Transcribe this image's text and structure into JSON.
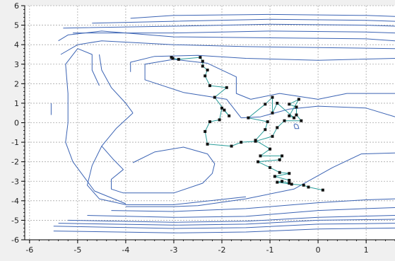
{
  "chart_data": {
    "type": "line",
    "title": "",
    "xlabel": "",
    "ylabel": "",
    "xlim": [
      -6.1,
      1.6
    ],
    "ylim": [
      -6.0,
      6.0
    ],
    "x_ticks": [
      -6,
      -5,
      -4,
      -3,
      -2,
      -1,
      0,
      1
    ],
    "y_ticks": [
      -6,
      -5,
      -4,
      -3,
      -2,
      -1,
      0,
      1,
      2,
      3,
      4,
      5,
      6
    ],
    "x_tick_labels": [
      "-6",
      "-5",
      "-4",
      "-3",
      "-2",
      "-1",
      "0",
      "1"
    ],
    "y_tick_labels": [
      "-6",
      "-5",
      "-4",
      "-3",
      "-2",
      "-1",
      "0",
      "1",
      "2",
      "3",
      "4",
      "5",
      "6"
    ],
    "grid": true,
    "colors": {
      "plot_background": "#ffffff",
      "outer_background": "#f0f0f0",
      "grid": "#a9a9a9",
      "contour": "#3c64b4",
      "path": "#2a9d9a",
      "marker": "#111111"
    },
    "contours": [
      {
        "name": "",
        "points": [
          [
            -3.9,
            5.35
          ],
          [
            -3.0,
            5.5
          ],
          [
            -1.0,
            5.55
          ],
          [
            1.0,
            5.5
          ],
          [
            1.6,
            5.45
          ]
        ]
      },
      {
        "name": "",
        "points": [
          [
            -4.7,
            5.1
          ],
          [
            -3.0,
            5.2
          ],
          [
            -1.0,
            5.3
          ],
          [
            1.0,
            5.25
          ],
          [
            1.6,
            5.2
          ]
        ]
      },
      {
        "name": "",
        "points": [
          [
            -5.3,
            4.85
          ],
          [
            -3.0,
            4.95
          ],
          [
            -1.0,
            5.05
          ],
          [
            1.0,
            5.0
          ],
          [
            1.6,
            4.95
          ]
        ]
      },
      {
        "name": "",
        "points": [
          [
            -5.1,
            4.6
          ],
          [
            -3.0,
            4.6
          ],
          [
            -1.0,
            4.7
          ],
          [
            1.0,
            4.65
          ],
          [
            1.6,
            4.6
          ]
        ]
      },
      {
        "name": "",
        "points": [
          [
            -5.4,
            4.2
          ],
          [
            -5.2,
            4.5
          ],
          [
            -4.5,
            4.7
          ],
          [
            -3.0,
            4.4
          ],
          [
            -1.0,
            4.35
          ],
          [
            1.0,
            4.3
          ],
          [
            1.6,
            4.2
          ]
        ]
      },
      {
        "name": "",
        "points": [
          [
            -5.35,
            3.5
          ],
          [
            -5.0,
            4.0
          ],
          [
            -4.5,
            4.2
          ],
          [
            -3.0,
            4.0
          ],
          [
            -1.5,
            3.9
          ],
          [
            0.0,
            3.85
          ],
          [
            1.6,
            3.8
          ]
        ]
      },
      {
        "name": "",
        "points": [
          [
            -3.9,
            2.6
          ],
          [
            -3.9,
            3.1
          ],
          [
            -3.4,
            3.4
          ],
          [
            -2.5,
            3.45
          ],
          [
            -1.5,
            3.3
          ],
          [
            0.0,
            3.2
          ],
          [
            1.6,
            3.3
          ]
        ]
      },
      {
        "name": "",
        "points": [
          [
            -1.6,
            0.25
          ],
          [
            -1.9,
            1.2
          ],
          [
            -2.8,
            1.55
          ],
          [
            -3.6,
            2.2
          ],
          [
            -3.6,
            3.0
          ],
          [
            -3.0,
            3.25
          ],
          [
            -2.3,
            3.05
          ],
          [
            -1.7,
            2.35
          ],
          [
            -1.7,
            1.5
          ],
          [
            -1.4,
            1.2
          ]
        ]
      },
      {
        "name": "",
        "points": [
          [
            -1.4,
            1.2
          ],
          [
            -0.8,
            1.5
          ],
          [
            0.0,
            1.2
          ],
          [
            0.6,
            1.5
          ],
          [
            1.0,
            1.5
          ],
          [
            1.6,
            1.5
          ]
        ]
      },
      {
        "name": "",
        "points": [
          [
            -1.6,
            0.25
          ],
          [
            -1.2,
            0.3
          ],
          [
            -0.6,
            0.7
          ],
          [
            0.0,
            0.85
          ],
          [
            1.0,
            0.75
          ],
          [
            1.6,
            0.3
          ]
        ]
      },
      {
        "name": "",
        "points": [
          [
            -4.55,
            1.9
          ],
          [
            -4.7,
            2.7
          ],
          [
            -4.7,
            3.5
          ],
          [
            -5.0,
            3.8
          ],
          [
            -5.25,
            3.0
          ],
          [
            -5.2,
            1.5
          ],
          [
            -5.2,
            0.0
          ],
          [
            -5.25,
            -1.0
          ],
          [
            -5.1,
            -2.0
          ],
          [
            -4.65,
            -3.5
          ],
          [
            -4.0,
            -4.15
          ]
        ]
      },
      {
        "name": "",
        "points": [
          [
            -3.85,
            0.5
          ],
          [
            -4.0,
            1.0
          ],
          [
            -4.3,
            1.8
          ],
          [
            -4.5,
            2.7
          ],
          [
            -4.55,
            3.5
          ]
        ]
      },
      {
        "name": "",
        "points": [
          [
            -3.85,
            0.5
          ],
          [
            -4.2,
            -0.3
          ],
          [
            -4.5,
            -1.2
          ],
          [
            -4.7,
            -2.2
          ],
          [
            -4.8,
            -3.2
          ],
          [
            -4.55,
            -3.9
          ],
          [
            -4.0,
            -4.2
          ],
          [
            -3.0,
            -4.2
          ],
          [
            -1.5,
            -3.8
          ]
        ]
      },
      {
        "name": "",
        "points": [
          [
            -5.55,
            1.0
          ],
          [
            -5.55,
            0.4
          ]
        ]
      },
      {
        "name": "",
        "points": [
          [
            -4.5,
            -1.2
          ],
          [
            -4.25,
            -1.9
          ],
          [
            -4.05,
            -2.4
          ],
          [
            -4.3,
            -2.9
          ],
          [
            -4.3,
            -3.4
          ],
          [
            -4.05,
            -3.6
          ],
          [
            -3.0,
            -3.6
          ],
          [
            -2.4,
            -3.1
          ],
          [
            -2.2,
            -2.6
          ],
          [
            -2.15,
            -2.1
          ],
          [
            -2.3,
            -1.6
          ],
          [
            -2.8,
            -1.25
          ],
          [
            -3.4,
            -1.5
          ],
          [
            -3.85,
            -2.05
          ]
        ]
      },
      {
        "name": "",
        "points": [
          [
            -4.0,
            -4.3
          ],
          [
            -3.0,
            -4.3
          ],
          [
            -2.5,
            -4.25
          ],
          [
            -1.5,
            -3.9
          ],
          [
            -0.5,
            -3.4
          ],
          [
            0.3,
            -2.3
          ],
          [
            0.9,
            -1.6
          ],
          [
            1.6,
            -1.55
          ]
        ]
      },
      {
        "name": "",
        "points": [
          [
            -4.3,
            -4.5
          ],
          [
            -3.0,
            -4.55
          ],
          [
            -1.5,
            -4.4
          ],
          [
            0.0,
            -4.1
          ],
          [
            1.0,
            -3.95
          ],
          [
            1.6,
            -3.9
          ]
        ]
      },
      {
        "name": "",
        "points": [
          [
            -4.8,
            -4.75
          ],
          [
            -3.0,
            -4.85
          ],
          [
            -1.5,
            -4.8
          ],
          [
            0.0,
            -4.5
          ],
          [
            1.0,
            -4.4
          ],
          [
            1.6,
            -4.35
          ]
        ]
      },
      {
        "name": "",
        "points": [
          [
            -5.2,
            -5.0
          ],
          [
            -3.0,
            -5.1
          ],
          [
            -1.5,
            -5.05
          ],
          [
            0.0,
            -4.85
          ],
          [
            1.6,
            -4.75
          ]
        ]
      },
      {
        "name": "",
        "points": [
          [
            -5.4,
            -5.15
          ],
          [
            -3.0,
            -5.25
          ],
          [
            -1.5,
            -5.2
          ],
          [
            0.0,
            -5.0
          ],
          [
            1.6,
            -4.95
          ]
        ]
      },
      {
        "name": "",
        "points": [
          [
            -5.5,
            -5.3
          ],
          [
            -3.0,
            -5.42
          ],
          [
            -1.5,
            -5.38
          ],
          [
            0.0,
            -5.2
          ],
          [
            1.6,
            -5.15
          ]
        ]
      },
      {
        "name": "",
        "points": [
          [
            -5.5,
            -5.55
          ],
          [
            -3.0,
            -5.65
          ],
          [
            -1.5,
            -5.6
          ],
          [
            0.0,
            -5.45
          ],
          [
            1.6,
            -5.4
          ]
        ]
      },
      {
        "name": "",
        "points": [
          [
            -0.48,
            -0.05
          ],
          [
            -0.42,
            -0.12
          ],
          [
            -0.4,
            -0.3
          ],
          [
            -0.48,
            -0.3
          ],
          [
            -0.5,
            -0.12
          ],
          [
            -0.48,
            -0.05
          ]
        ]
      }
    ],
    "series": [
      {
        "name": "",
        "points": [
          [
            -3.05,
            3.35
          ],
          [
            -3.02,
            3.3
          ],
          [
            -2.9,
            3.25
          ],
          [
            -2.45,
            3.35
          ],
          [
            -2.4,
            3.15
          ],
          [
            -2.4,
            2.9
          ],
          [
            -2.3,
            2.7
          ],
          [
            -2.35,
            2.4
          ],
          [
            -2.25,
            1.9
          ],
          [
            -1.9,
            1.8
          ],
          [
            -2.15,
            1.3
          ],
          [
            -1.95,
            0.65
          ],
          [
            -1.85,
            0.35
          ],
          [
            -2.0,
            0.75
          ],
          [
            -2.05,
            0.15
          ],
          [
            -2.25,
            0.05
          ],
          [
            -2.35,
            -0.45
          ],
          [
            -2.3,
            -1.1
          ],
          [
            -1.8,
            -1.2
          ],
          [
            -1.6,
            -1.0
          ],
          [
            -1.3,
            -0.95
          ],
          [
            -0.95,
            -0.7
          ],
          [
            -0.85,
            -0.25
          ],
          [
            -0.7,
            0.1
          ],
          [
            -0.35,
            0.1
          ],
          [
            -0.45,
            0.4
          ],
          [
            -0.45,
            0.8
          ],
          [
            -0.6,
            0.95
          ],
          [
            -0.4,
            1.2
          ],
          [
            -0.6,
            0.35
          ],
          [
            -0.5,
            0.25
          ],
          [
            -0.85,
            1.0
          ],
          [
            -0.95,
            0.5
          ],
          [
            -0.95,
            1.3
          ],
          [
            -1.1,
            0.95
          ],
          [
            -1.45,
            0.25
          ],
          [
            -1.05,
            0.05
          ],
          [
            -1.1,
            -0.35
          ],
          [
            -1.3,
            -0.9
          ],
          [
            -1.0,
            -1.35
          ],
          [
            -1.2,
            -1.7
          ],
          [
            -0.75,
            -1.7
          ],
          [
            -0.8,
            -1.9
          ],
          [
            -1.25,
            -2.0
          ],
          [
            -1.0,
            -2.3
          ],
          [
            -0.8,
            -2.55
          ],
          [
            -0.6,
            -2.6
          ],
          [
            -0.9,
            -2.75
          ],
          [
            -0.6,
            -2.95
          ],
          [
            -0.6,
            -3.1
          ],
          [
            -0.75,
            -3.0
          ],
          [
            -0.85,
            -3.05
          ],
          [
            -0.55,
            -3.15
          ],
          [
            -0.3,
            -3.2
          ],
          [
            -0.2,
            -3.3
          ],
          [
            0.1,
            -3.45
          ]
        ]
      }
    ]
  }
}
